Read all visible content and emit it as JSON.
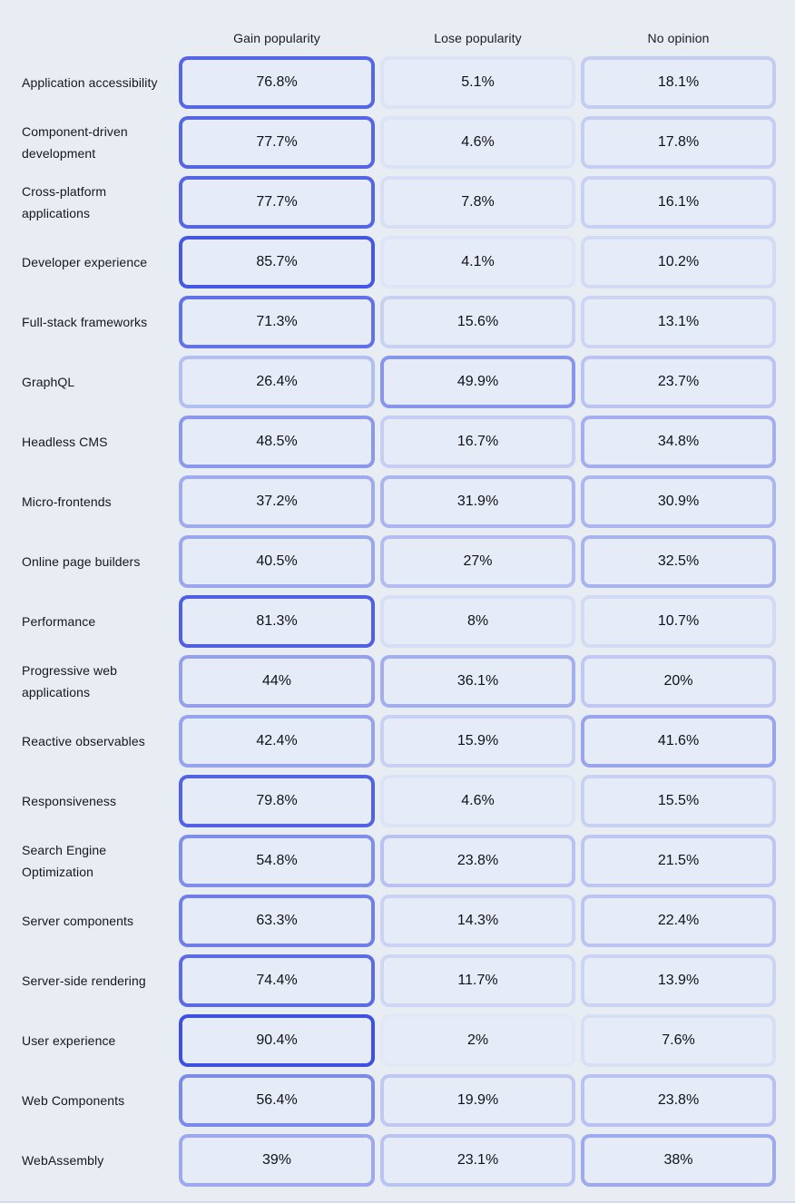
{
  "page": {
    "background_color": "#e8edf4",
    "cell_fill_color": "#e6ecf7",
    "accent_color": "#2b3fe0",
    "text_color": "#14151b"
  },
  "chart_data": {
    "type": "heatmap",
    "value_format": "percent",
    "title": "",
    "legend_position": "none",
    "border_intensity_rule": "cell border opacity equals value/100 of accent color",
    "columns": [
      "Gain popularity",
      "Lose popularity",
      "No opinion"
    ],
    "rows": [
      {
        "label": "Application accessibility",
        "values": [
          76.8,
          5.1,
          18.1
        ]
      },
      {
        "label": "Component-driven development",
        "values": [
          77.7,
          4.6,
          17.8
        ]
      },
      {
        "label": "Cross-platform applications",
        "values": [
          77.7,
          7.8,
          16.1
        ]
      },
      {
        "label": "Developer experience",
        "values": [
          85.7,
          4.1,
          10.2
        ]
      },
      {
        "label": "Full-stack frameworks",
        "values": [
          71.3,
          15.6,
          13.1
        ]
      },
      {
        "label": "GraphQL",
        "values": [
          26.4,
          49.9,
          23.7
        ]
      },
      {
        "label": "Headless CMS",
        "values": [
          48.5,
          16.7,
          34.8
        ]
      },
      {
        "label": "Micro-frontends",
        "values": [
          37.2,
          31.9,
          30.9
        ]
      },
      {
        "label": "Online page builders",
        "values": [
          40.5,
          27,
          32.5
        ]
      },
      {
        "label": "Performance",
        "values": [
          81.3,
          8,
          10.7
        ]
      },
      {
        "label": "Progressive web applications",
        "values": [
          44,
          36.1,
          20
        ]
      },
      {
        "label": "Reactive observables",
        "values": [
          42.4,
          15.9,
          41.6
        ]
      },
      {
        "label": "Responsiveness",
        "values": [
          79.8,
          4.6,
          15.5
        ]
      },
      {
        "label": "Search Engine Optimization",
        "values": [
          54.8,
          23.8,
          21.5
        ]
      },
      {
        "label": "Server components",
        "values": [
          63.3,
          14.3,
          22.4
        ]
      },
      {
        "label": "Server-side rendering",
        "values": [
          74.4,
          11.7,
          13.9
        ]
      },
      {
        "label": "User experience",
        "values": [
          90.4,
          2,
          7.6
        ]
      },
      {
        "label": "Web Components",
        "values": [
          56.4,
          19.9,
          23.8
        ]
      },
      {
        "label": "WebAssembly",
        "values": [
          39,
          23.1,
          38
        ]
      }
    ]
  }
}
